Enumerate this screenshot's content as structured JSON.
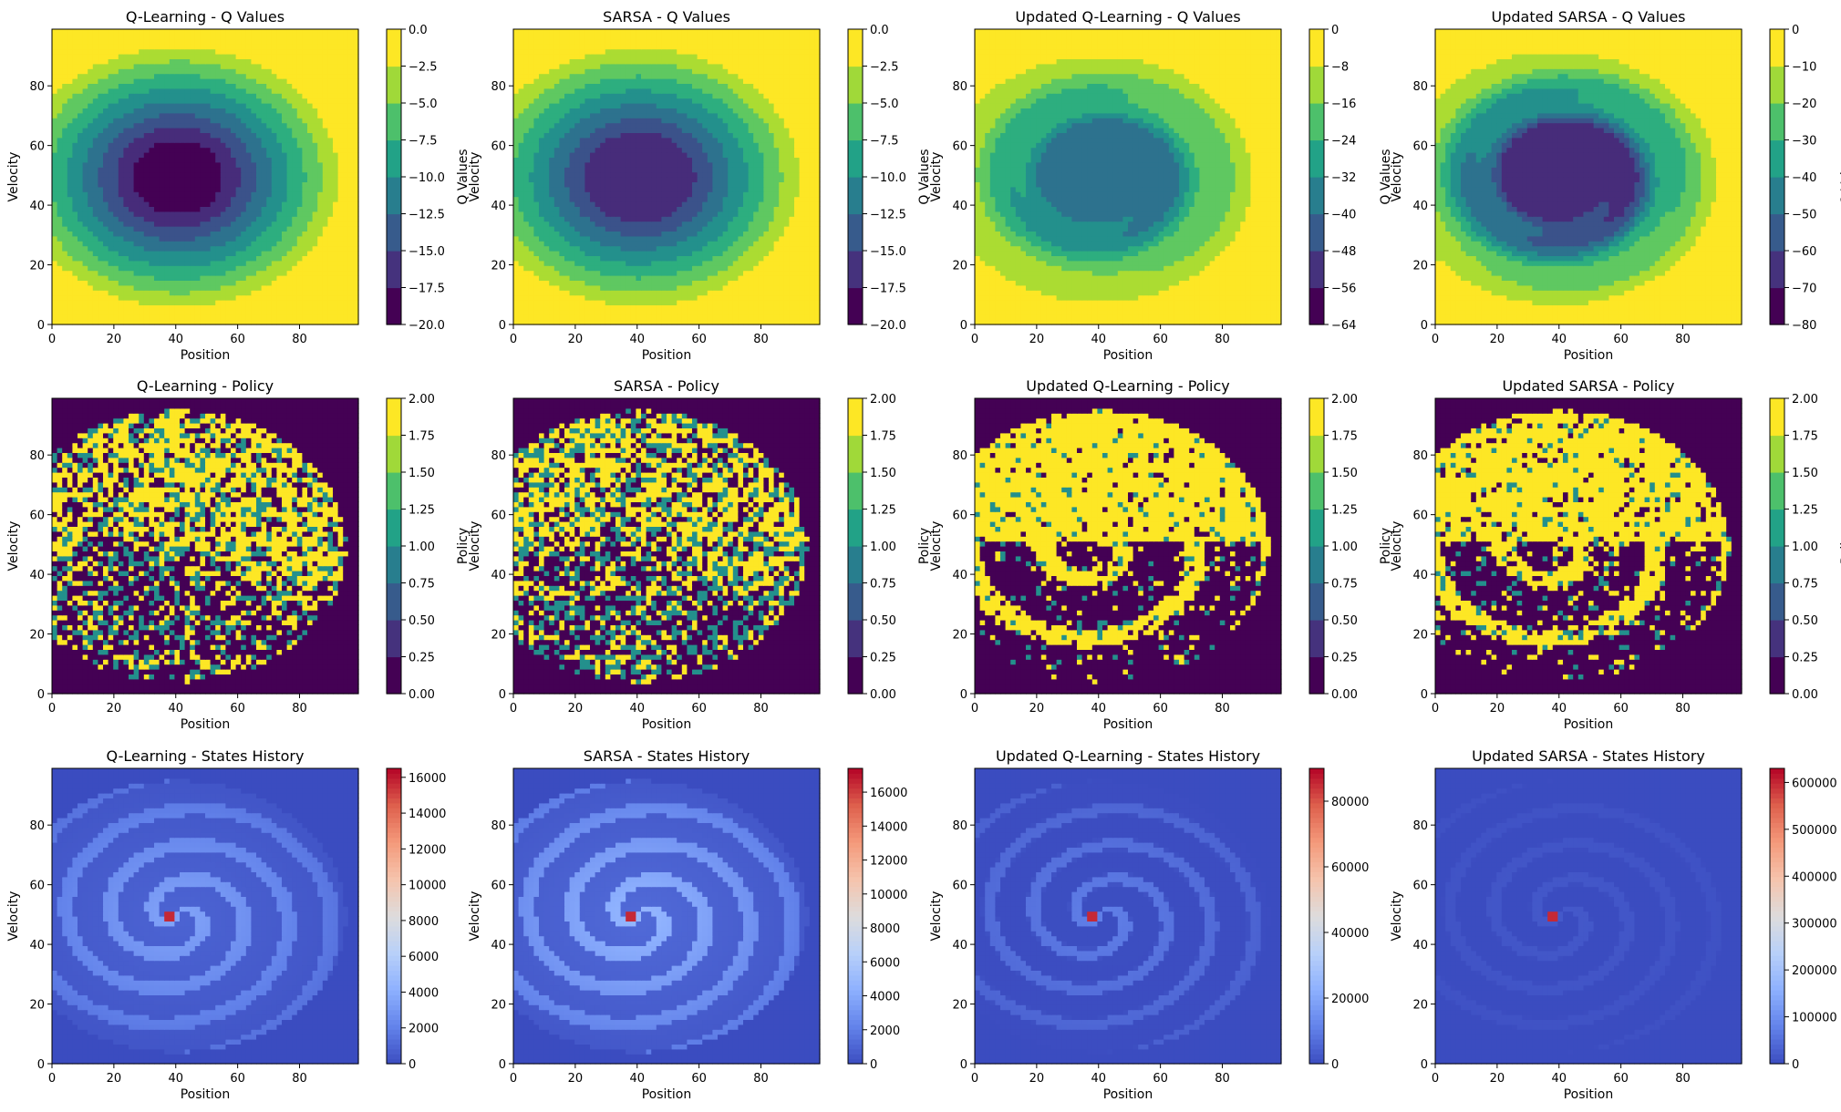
{
  "figure": {
    "grid_rows": 3,
    "grid_cols": 4
  },
  "chart_data": [
    {
      "type": "heatmap",
      "kind": "qvalues",
      "title": "Q-Learning - Q Values",
      "xlabel": "Position",
      "ylabel": "Velocity",
      "colorbar_label": "Q Values",
      "cmap": "viridis",
      "vmin": -20,
      "vmax": 0,
      "xlim": [
        0,
        99
      ],
      "ylim": [
        0,
        99
      ],
      "x_ticks": [
        "0",
        "20",
        "40",
        "60",
        "80"
      ],
      "y_ticks": [
        "0",
        "20",
        "40",
        "60",
        "80"
      ],
      "cb_ticks": [
        "0.0",
        "−2.5",
        "−5.0",
        "−7.5",
        "−10.0",
        "−12.5",
        "−15.0",
        "−17.5",
        "−20.0"
      ],
      "seed": 1,
      "swirl": 0.0,
      "amp": 19
    },
    {
      "type": "heatmap",
      "kind": "qvalues",
      "title": "SARSA - Q Values",
      "xlabel": "Position",
      "ylabel": "Velocity",
      "colorbar_label": "Q Values",
      "cmap": "viridis",
      "vmin": -20,
      "vmax": 0,
      "xlim": [
        0,
        99
      ],
      "ylim": [
        0,
        99
      ],
      "x_ticks": [
        "0",
        "20",
        "40",
        "60",
        "80"
      ],
      "y_ticks": [
        "0",
        "20",
        "40",
        "60",
        "80"
      ],
      "cb_ticks": [
        "0.0",
        "−2.5",
        "−5.0",
        "−7.5",
        "−10.0",
        "−12.5",
        "−15.0",
        "−17.5",
        "−20.0"
      ],
      "seed": 2,
      "swirl": 0.0,
      "amp": 18
    },
    {
      "type": "heatmap",
      "kind": "qvalues",
      "title": "Updated Q-Learning - Q Values",
      "xlabel": "Position",
      "ylabel": "Velocity",
      "colorbar_label": "Q Values",
      "cmap": "viridis",
      "vmin": -64,
      "vmax": 0,
      "xlim": [
        0,
        99
      ],
      "ylim": [
        0,
        99
      ],
      "x_ticks": [
        "0",
        "20",
        "40",
        "60",
        "80"
      ],
      "y_ticks": [
        "0",
        "20",
        "40",
        "60",
        "80"
      ],
      "cb_ticks": [
        "0",
        "−8",
        "−16",
        "−24",
        "−32",
        "−40",
        "−48",
        "−56",
        "−64"
      ],
      "seed": 3,
      "swirl": 1.0,
      "amp": 42
    },
    {
      "type": "heatmap",
      "kind": "qvalues",
      "title": "Updated SARSA - Q Values",
      "xlabel": "Position",
      "ylabel": "Velocity",
      "colorbar_label": "Q Values",
      "cmap": "viridis",
      "vmin": -80,
      "vmax": 0,
      "xlim": [
        0,
        99
      ],
      "ylim": [
        0,
        99
      ],
      "x_ticks": [
        "0",
        "20",
        "40",
        "60",
        "80"
      ],
      "y_ticks": [
        "0",
        "20",
        "40",
        "60",
        "80"
      ],
      "cb_ticks": [
        "0",
        "−10",
        "−20",
        "−30",
        "−40",
        "−50",
        "−60",
        "−70",
        "−80"
      ],
      "seed": 4,
      "swirl": 1.0,
      "amp": 72
    },
    {
      "type": "heatmap",
      "kind": "policy",
      "title": "Q-Learning - Policy",
      "xlabel": "Position",
      "ylabel": "Velocity",
      "colorbar_label": "Policy",
      "cmap": "viridis",
      "vmin": 0,
      "vmax": 2,
      "xlim": [
        0,
        99
      ],
      "ylim": [
        0,
        99
      ],
      "x_ticks": [
        "0",
        "20",
        "40",
        "60",
        "80"
      ],
      "y_ticks": [
        "0",
        "20",
        "40",
        "60",
        "80"
      ],
      "cb_ticks": [
        "2.00",
        "1.75",
        "1.50",
        "1.25",
        "1.00",
        "0.75",
        "0.50",
        "0.25",
        "0.00"
      ],
      "seed": 5,
      "swirl": 0.0,
      "noise": 0.45
    },
    {
      "type": "heatmap",
      "kind": "policy",
      "title": "SARSA - Policy",
      "xlabel": "Position",
      "ylabel": "Velocity",
      "colorbar_label": "Policy",
      "cmap": "viridis",
      "vmin": 0,
      "vmax": 2,
      "xlim": [
        0,
        99
      ],
      "ylim": [
        0,
        99
      ],
      "x_ticks": [
        "0",
        "20",
        "40",
        "60",
        "80"
      ],
      "y_ticks": [
        "0",
        "20",
        "40",
        "60",
        "80"
      ],
      "cb_ticks": [
        "2.00",
        "1.75",
        "1.50",
        "1.25",
        "1.00",
        "0.75",
        "0.50",
        "0.25",
        "0.00"
      ],
      "seed": 6,
      "swirl": 0.0,
      "noise": 0.5
    },
    {
      "type": "heatmap",
      "kind": "policy",
      "title": "Updated Q-Learning - Policy",
      "xlabel": "Position",
      "ylabel": "Velocity",
      "colorbar_label": "Policy",
      "cmap": "viridis",
      "vmin": 0,
      "vmax": 2,
      "xlim": [
        0,
        99
      ],
      "ylim": [
        0,
        99
      ],
      "x_ticks": [
        "0",
        "20",
        "40",
        "60",
        "80"
      ],
      "y_ticks": [
        "0",
        "20",
        "40",
        "60",
        "80"
      ],
      "cb_ticks": [
        "2.00",
        "1.75",
        "1.50",
        "1.25",
        "1.00",
        "0.75",
        "0.50",
        "0.25",
        "0.00"
      ],
      "seed": 7,
      "swirl": 1.0,
      "noise": 0.12
    },
    {
      "type": "heatmap",
      "kind": "policy",
      "title": "Updated SARSA - Policy",
      "xlabel": "Position",
      "ylabel": "Velocity",
      "colorbar_label": "Policy",
      "cmap": "viridis",
      "vmin": 0,
      "vmax": 2,
      "xlim": [
        0,
        99
      ],
      "ylim": [
        0,
        99
      ],
      "x_ticks": [
        "0",
        "20",
        "40",
        "60",
        "80"
      ],
      "y_ticks": [
        "0",
        "20",
        "40",
        "60",
        "80"
      ],
      "cb_ticks": [
        "2.00",
        "1.75",
        "1.50",
        "1.25",
        "1.00",
        "0.75",
        "0.50",
        "0.25",
        "0.00"
      ],
      "seed": 8,
      "swirl": 1.0,
      "noise": 0.18
    },
    {
      "type": "heatmap",
      "kind": "history",
      "title": "Q-Learning - States History",
      "xlabel": "Position",
      "ylabel": "Velocity",
      "colorbar_label": "",
      "cmap": "coolwarm",
      "vmin": 0,
      "vmax": 16500,
      "xlim": [
        0,
        99
      ],
      "ylim": [
        0,
        99
      ],
      "x_ticks": [
        "0",
        "20",
        "40",
        "60",
        "80"
      ],
      "y_ticks": [
        "0",
        "20",
        "40",
        "60",
        "80"
      ],
      "cb_ticks": [
        "16000",
        "14000",
        "12000",
        "10000",
        "8000",
        "6000",
        "4000",
        "2000",
        "0"
      ],
      "seed": 9,
      "swirl": 0.0,
      "intensity": 0.22
    },
    {
      "type": "heatmap",
      "kind": "history",
      "title": "SARSA - States History",
      "xlabel": "Position",
      "ylabel": "Velocity",
      "colorbar_label": "",
      "cmap": "coolwarm",
      "vmin": 0,
      "vmax": 17400,
      "xlim": [
        0,
        99
      ],
      "ylim": [
        0,
        99
      ],
      "x_ticks": [
        "0",
        "20",
        "40",
        "60",
        "80"
      ],
      "y_ticks": [
        "0",
        "20",
        "40",
        "60",
        "80"
      ],
      "cb_ticks": [
        "16000",
        "14000",
        "12000",
        "10000",
        "8000",
        "6000",
        "4000",
        "2000",
        "0"
      ],
      "seed": 10,
      "swirl": 0.0,
      "intensity": 0.28
    },
    {
      "type": "heatmap",
      "kind": "history",
      "title": "Updated Q-Learning - States History",
      "xlabel": "Position",
      "ylabel": "Velocity",
      "colorbar_label": "",
      "cmap": "coolwarm",
      "vmin": 0,
      "vmax": 90000,
      "xlim": [
        0,
        99
      ],
      "ylim": [
        0,
        99
      ],
      "x_ticks": [
        "0",
        "20",
        "40",
        "60",
        "80"
      ],
      "y_ticks": [
        "0",
        "20",
        "40",
        "60",
        "80"
      ],
      "cb_ticks": [
        "80000",
        "60000",
        "40000",
        "20000",
        "0"
      ],
      "seed": 11,
      "swirl": 1.0,
      "intensity": 0.12
    },
    {
      "type": "heatmap",
      "kind": "history",
      "title": "Updated SARSA - States History",
      "xlabel": "Position",
      "ylabel": "Velocity",
      "colorbar_label": "",
      "cmap": "coolwarm",
      "vmin": 0,
      "vmax": 630000,
      "xlim": [
        0,
        99
      ],
      "ylim": [
        0,
        99
      ],
      "x_ticks": [
        "0",
        "20",
        "40",
        "60",
        "80"
      ],
      "y_ticks": [
        "0",
        "20",
        "40",
        "60",
        "80"
      ],
      "cb_ticks": [
        "600000",
        "500000",
        "400000",
        "300000",
        "200000",
        "100000",
        "0"
      ],
      "seed": 12,
      "swirl": 1.0,
      "intensity": 0.03
    }
  ]
}
